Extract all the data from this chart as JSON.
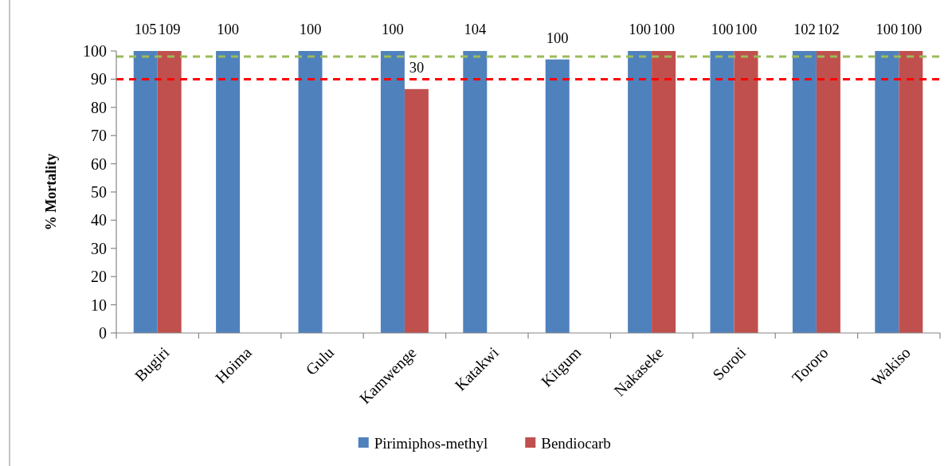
{
  "chart_data": {
    "type": "bar",
    "ylabel": "% Mortality",
    "categories": [
      "Bugiri",
      "Hoima",
      "Gulu",
      "Kamwenge",
      "Katakwi",
      "Kitgum",
      "Nakaseke",
      "Soroti",
      "Tororo",
      "Wakiso"
    ],
    "series": [
      {
        "name": "Pirimiphos-methyl",
        "color": "#4f81bd",
        "values": [
          100,
          100,
          100,
          100,
          100,
          97,
          100,
          100,
          100,
          100
        ]
      },
      {
        "name": "Bendiocarb",
        "color": "#c0504d",
        "values": [
          100,
          null,
          null,
          86.5,
          null,
          null,
          100,
          100,
          100,
          100
        ]
      }
    ],
    "annotations": [
      {
        "text": "105",
        "x": "Bugiri",
        "y": 100
      },
      {
        "text": "109",
        "x": "Bugiri",
        "y": 100
      },
      {
        "text": "100",
        "x": "Hoima",
        "y": 100
      },
      {
        "text": "100",
        "x": "Gulu",
        "y": 100
      },
      {
        "text": "100",
        "x": "Kamwenge",
        "y": 100
      },
      {
        "text": "30",
        "y": 86.5
      },
      {
        "text": "104",
        "x": "Katakwi",
        "y": 100
      },
      {
        "text": "100",
        "x": "Kitgum",
        "y": 97
      },
      {
        "text": "100",
        "x": "Nakaseke",
        "y": 100
      },
      {
        "text": "100",
        "x": "Nakaseke",
        "y": 100
      },
      {
        "text": "100",
        "x": "Soroti",
        "y": 100
      },
      {
        "text": "100",
        "x": "Soroti",
        "y": 100
      },
      {
        "text": "102",
        "x": "Tororo",
        "y": 100
      },
      {
        "text": "102",
        "x": "Tororo",
        "y": 100
      },
      {
        "text": "100",
        "x": "Wakiso",
        "y": 100
      },
      {
        "text": "100",
        "x": "Wakiso",
        "y": 100
      }
    ],
    "ylim": [
      0,
      100
    ],
    "yticks": [
      0,
      10,
      20,
      30,
      40,
      50,
      60,
      70,
      80,
      90,
      100
    ],
    "ref_lines": [
      {
        "axis": "y",
        "value": 98,
        "color": "#9bbb59",
        "line_style": "dashed"
      },
      {
        "axis": "y",
        "value": 90,
        "color": "#ff0000",
        "line_style": "dashed"
      }
    ],
    "legend": "bottom"
  }
}
